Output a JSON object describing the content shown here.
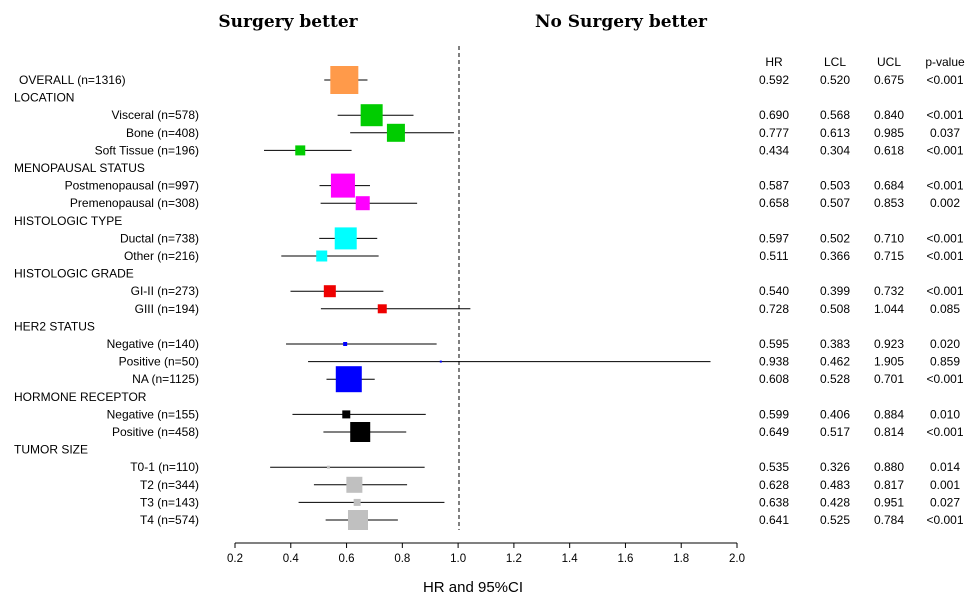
{
  "chart_data": {
    "type": "forest",
    "title_left": "Surgery better",
    "title_right": "No Surgery better",
    "xlabel": "HR and 95%CI",
    "xlim": [
      0.2,
      2.0
    ],
    "xticks": [
      "0.2",
      "0.4",
      "0.6",
      "0.8",
      "1.0",
      "1.2",
      "1.4",
      "1.6",
      "1.8",
      "2.0"
    ],
    "reference_line": 1.0,
    "columns": [
      "HR",
      "LCL",
      "UCL",
      "p-value"
    ],
    "rows": [
      {
        "label": "OVERALL (n=1316)",
        "header": false,
        "indent": false,
        "hr": 0.592,
        "lcl": 0.52,
        "ucl": 0.675,
        "p": "<0.001",
        "hr_s": "0.592",
        "lcl_s": "0.520",
        "ucl_s": "0.675",
        "color": "#ff9a4a",
        "size": 28
      },
      {
        "label": "LOCATION",
        "header": true
      },
      {
        "label": "Visceral (n=578)",
        "header": false,
        "indent": true,
        "hr": 0.69,
        "lcl": 0.568,
        "ucl": 0.84,
        "p": "<0.001",
        "hr_s": "0.690",
        "lcl_s": "0.568",
        "ucl_s": "0.840",
        "color": "#00cc00",
        "size": 22
      },
      {
        "label": "Bone (n=408)",
        "header": false,
        "indent": true,
        "hr": 0.777,
        "lcl": 0.613,
        "ucl": 0.985,
        "p": "0.037",
        "hr_s": "0.777",
        "lcl_s": "0.613",
        "ucl_s": "0.985",
        "color": "#00cc00",
        "size": 18
      },
      {
        "label": "Soft Tissue (n=196)",
        "header": false,
        "indent": true,
        "hr": 0.434,
        "lcl": 0.304,
        "ucl": 0.618,
        "p": "<0.001",
        "hr_s": "0.434",
        "lcl_s": "0.304",
        "ucl_s": "0.618",
        "color": "#00cc00",
        "size": 10
      },
      {
        "label": "MENOPAUSAL STATUS",
        "header": true
      },
      {
        "label": "Postmenopausal (n=997)",
        "header": false,
        "indent": true,
        "hr": 0.587,
        "lcl": 0.503,
        "ucl": 0.684,
        "p": "<0.001",
        "hr_s": "0.587",
        "lcl_s": "0.503",
        "ucl_s": "0.684",
        "color": "#ff00ff",
        "size": 24
      },
      {
        "label": "Premenopausal (n=308)",
        "header": false,
        "indent": true,
        "hr": 0.658,
        "lcl": 0.507,
        "ucl": 0.853,
        "p": "0.002",
        "hr_s": "0.658",
        "lcl_s": "0.507",
        "ucl_s": "0.853",
        "color": "#ff00ff",
        "size": 14
      },
      {
        "label": "HISTOLOGIC TYPE",
        "header": true
      },
      {
        "label": "Ductal (n=738)",
        "header": false,
        "indent": true,
        "hr": 0.597,
        "lcl": 0.502,
        "ucl": 0.71,
        "p": "<0.001",
        "hr_s": "0.597",
        "lcl_s": "0.502",
        "ucl_s": "0.710",
        "color": "#00ffff",
        "size": 22
      },
      {
        "label": "Other (n=216)",
        "header": false,
        "indent": true,
        "hr": 0.511,
        "lcl": 0.366,
        "ucl": 0.715,
        "p": "<0.001",
        "hr_s": "0.511",
        "lcl_s": "0.366",
        "ucl_s": "0.715",
        "color": "#00ffff",
        "size": 11
      },
      {
        "label": "HISTOLOGIC GRADE",
        "header": true
      },
      {
        "label": "GI-II (n=273)",
        "header": false,
        "indent": true,
        "hr": 0.54,
        "lcl": 0.399,
        "ucl": 0.732,
        "p": "<0.001",
        "hr_s": "0.540",
        "lcl_s": "0.399",
        "ucl_s": "0.732",
        "color": "#ee0000",
        "size": 12
      },
      {
        "label": "GIII (n=194)",
        "header": false,
        "indent": true,
        "hr": 0.728,
        "lcl": 0.508,
        "ucl": 1.044,
        "p": "0.085",
        "hr_s": "0.728",
        "lcl_s": "0.508",
        "ucl_s": "1.044",
        "color": "#ee0000",
        "size": 9
      },
      {
        "label": "HER2 STATUS",
        "header": true
      },
      {
        "label": "Negative (n=140)",
        "header": false,
        "indent": true,
        "hr": 0.595,
        "lcl": 0.383,
        "ucl": 0.923,
        "p": "0.020",
        "hr_s": "0.595",
        "lcl_s": "0.383",
        "ucl_s": "0.923",
        "color": "#0000ff",
        "size": 4
      },
      {
        "label": "Positive (n=50)",
        "header": false,
        "indent": true,
        "hr": 0.938,
        "lcl": 0.462,
        "ucl": 1.905,
        "p": "0.859",
        "hr_s": "0.938",
        "lcl_s": "0.462",
        "ucl_s": "1.905",
        "color": "#0000ff",
        "size": 2
      },
      {
        "label": "NA (n=1125)",
        "header": false,
        "indent": true,
        "hr": 0.608,
        "lcl": 0.528,
        "ucl": 0.701,
        "p": "<0.001",
        "hr_s": "0.608",
        "lcl_s": "0.528",
        "ucl_s": "0.701",
        "color": "#0000ff",
        "size": 26
      },
      {
        "label": "HORMONE RECEPTOR",
        "header": true
      },
      {
        "label": "Negative (n=155)",
        "header": false,
        "indent": true,
        "hr": 0.599,
        "lcl": 0.406,
        "ucl": 0.884,
        "p": "0.010",
        "hr_s": "0.599",
        "lcl_s": "0.406",
        "ucl_s": "0.884",
        "color": "#000000",
        "size": 8
      },
      {
        "label": "Positive (n=458)",
        "header": false,
        "indent": true,
        "hr": 0.649,
        "lcl": 0.517,
        "ucl": 0.814,
        "p": "<0.001",
        "hr_s": "0.649",
        "lcl_s": "0.517",
        "ucl_s": "0.814",
        "color": "#000000",
        "size": 20
      },
      {
        "label": "TUMOR SIZE",
        "header": true
      },
      {
        "label": "T0-1 (n=110)",
        "header": false,
        "indent": true,
        "hr": 0.535,
        "lcl": 0.326,
        "ucl": 0.88,
        "p": "0.014",
        "hr_s": "0.535",
        "lcl_s": "0.326",
        "ucl_s": "0.880",
        "color": "#c0c0c0",
        "size": 3
      },
      {
        "label": "T2 (n=344)",
        "header": false,
        "indent": true,
        "hr": 0.628,
        "lcl": 0.483,
        "ucl": 0.817,
        "p": "0.001",
        "hr_s": "0.628",
        "lcl_s": "0.483",
        "ucl_s": "0.817",
        "color": "#c0c0c0",
        "size": 16
      },
      {
        "label": "T3 (n=143)",
        "header": false,
        "indent": true,
        "hr": 0.638,
        "lcl": 0.428,
        "ucl": 0.951,
        "p": "0.027",
        "hr_s": "0.638",
        "lcl_s": "0.428",
        "ucl_s": "0.951",
        "color": "#c0c0c0",
        "size": 7
      },
      {
        "label": "T4 (n=574)",
        "header": false,
        "indent": true,
        "hr": 0.641,
        "lcl": 0.525,
        "ucl": 0.784,
        "p": "<0.001",
        "hr_s": "0.641",
        "lcl_s": "0.525",
        "ucl_s": "0.784",
        "color": "#c0c0c0",
        "size": 20
      }
    ]
  }
}
